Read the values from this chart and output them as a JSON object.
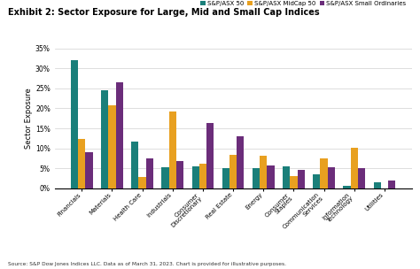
{
  "title": "Exhibit 2: Sector Exposure for Large, Mid and Small Cap Indices",
  "categories": [
    "Financials",
    "Materials",
    "Health Care",
    "Industrials",
    "Consumer\nDiscretionary",
    "Real Estate",
    "Energy",
    "Consumer\nStaples",
    "Communication\nServices",
    "Information\nTechnology",
    "Utilities"
  ],
  "series": [
    {
      "name": "S&P/ASX 50",
      "color": "#1a7f7a",
      "values": [
        32.0,
        24.5,
        11.8,
        5.3,
        5.5,
        5.0,
        5.1,
        5.4,
        3.5,
        0.7,
        1.5
      ]
    },
    {
      "name": "S&P/ASX MidCap 50",
      "color": "#e8a020",
      "values": [
        12.3,
        20.7,
        2.9,
        19.2,
        6.2,
        8.3,
        8.2,
        3.0,
        7.4,
        10.1,
        0.0
      ]
    },
    {
      "name": "S&P/ASX Small Ordinaries",
      "color": "#6b2d7a",
      "values": [
        9.1,
        26.6,
        7.5,
        6.9,
        16.4,
        13.0,
        5.8,
        4.5,
        5.2,
        5.0,
        1.9
      ]
    }
  ],
  "ylabel": "Sector Exposure",
  "ylim": [
    0,
    35
  ],
  "yticks": [
    0,
    5,
    10,
    15,
    20,
    25,
    30,
    35
  ],
  "source": "Source: S&P Dow Jones Indices LLC. Data as of March 31, 2023. Chart is provided for illustrative purposes.",
  "background_color": "#ffffff",
  "grid_color": "#d0d0d0"
}
